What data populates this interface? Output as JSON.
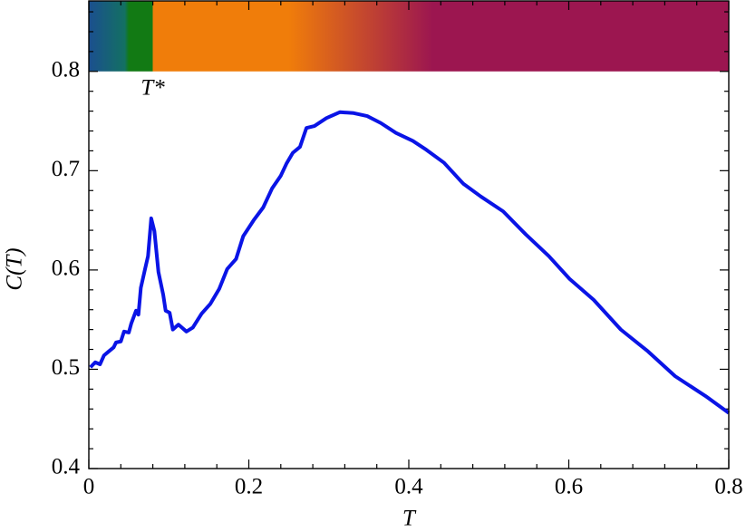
{
  "chart_data": {
    "type": "line",
    "xlabel": "T",
    "ylabel": "C(T)",
    "xlim": [
      0,
      0.8
    ],
    "ylim": [
      0.4,
      0.871
    ],
    "xticks": [
      0,
      0.2,
      0.4,
      0.6,
      0.8
    ],
    "yticks": [
      0.4,
      0.5,
      0.6,
      0.7,
      0.8
    ],
    "annotation": {
      "text": "T*",
      "x": 0.08
    },
    "band": {
      "ymin": 0.8,
      "stops": [
        {
          "x": 0,
          "color": "#1b4f8f"
        },
        {
          "x": 0.045,
          "color": "#137062"
        },
        {
          "x": 0.05,
          "color": "#127a14"
        },
        {
          "x": 0.08,
          "color": "#127a14"
        },
        {
          "x": 0.08,
          "color": "#f07d0a"
        },
        {
          "x": 0.25,
          "color": "#f07d0a"
        },
        {
          "x": 0.43,
          "color": "#9c1650"
        },
        {
          "x": 0.8,
          "color": "#9c1650"
        }
      ]
    },
    "series": [
      {
        "color": "#0a14e6",
        "x": [
          0.002,
          0.008,
          0.014,
          0.019,
          0.025,
          0.031,
          0.034,
          0.04,
          0.044,
          0.05,
          0.053,
          0.059,
          0.062,
          0.065,
          0.07,
          0.074,
          0.078,
          0.082,
          0.087,
          0.093,
          0.096,
          0.101,
          0.105,
          0.112,
          0.122,
          0.13,
          0.141,
          0.152,
          0.163,
          0.173,
          0.184,
          0.193,
          0.206,
          0.218,
          0.229,
          0.24,
          0.247,
          0.255,
          0.264,
          0.272,
          0.282,
          0.297,
          0.314,
          0.331,
          0.348,
          0.365,
          0.384,
          0.405,
          0.422,
          0.444,
          0.468,
          0.49,
          0.518,
          0.546,
          0.575,
          0.601,
          0.631,
          0.665,
          0.699,
          0.733,
          0.771,
          0.8
        ],
        "values": [
          0.502,
          0.507,
          0.505,
          0.514,
          0.518,
          0.522,
          0.527,
          0.528,
          0.538,
          0.537,
          0.546,
          0.559,
          0.555,
          0.582,
          0.6,
          0.614,
          0.652,
          0.639,
          0.598,
          0.575,
          0.559,
          0.557,
          0.54,
          0.545,
          0.538,
          0.542,
          0.556,
          0.566,
          0.581,
          0.601,
          0.611,
          0.634,
          0.65,
          0.663,
          0.682,
          0.695,
          0.707,
          0.718,
          0.724,
          0.743,
          0.745,
          0.753,
          0.759,
          0.758,
          0.755,
          0.748,
          0.738,
          0.73,
          0.721,
          0.708,
          0.687,
          0.674,
          0.659,
          0.636,
          0.614,
          0.591,
          0.57,
          0.54,
          0.518,
          0.493,
          0.473,
          0.456
        ]
      }
    ]
  }
}
